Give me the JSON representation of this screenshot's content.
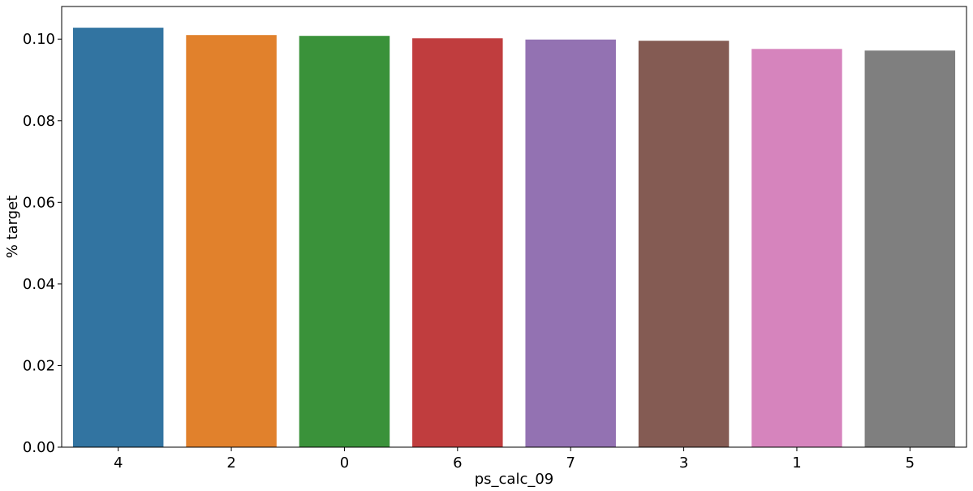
{
  "chart_data": {
    "type": "bar",
    "categories": [
      "4",
      "2",
      "0",
      "6",
      "7",
      "3",
      "1",
      "5"
    ],
    "values": [
      0.1028,
      0.101,
      0.1008,
      0.1002,
      0.0999,
      0.0996,
      0.0976,
      0.0972
    ],
    "colors": [
      "#3274a1",
      "#e1812c",
      "#3a923a",
      "#c03d3e",
      "#9372b2",
      "#845b53",
      "#d684bd",
      "#7f7f7f"
    ],
    "xlabel": "ps_calc_09",
    "ylabel": "% target",
    "ylim": [
      0,
      0.108
    ],
    "yticks": [
      0.0,
      0.02,
      0.04,
      0.06,
      0.08,
      0.1
    ],
    "ytick_labels": [
      "0.00",
      "0.02",
      "0.04",
      "0.06",
      "0.08",
      "0.10"
    ],
    "grid": false,
    "legend": "none"
  }
}
